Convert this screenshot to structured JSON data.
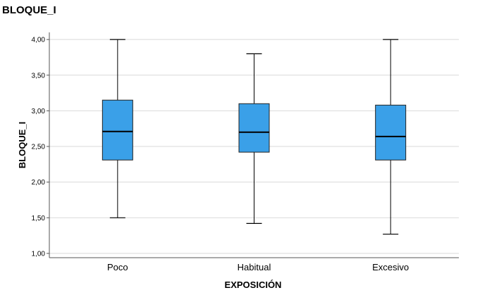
{
  "page": {
    "title": "BLOQUE_I"
  },
  "chart_data": {
    "type": "boxplot",
    "title": "BLOQUE_I",
    "xlabel": "EXPOSICIÓN",
    "ylabel": "BLOQUE_I",
    "ylim": [
      0.94,
      4.1
    ],
    "yticks": [
      1.0,
      1.5,
      2.0,
      2.5,
      3.0,
      3.5,
      4.0
    ],
    "ytick_labels": [
      "1,00",
      "1,50",
      "2,00",
      "2,50",
      "3,00",
      "3,50",
      "4,00"
    ],
    "grid": "horizontal",
    "box_color": "#3aa0e8",
    "categories": [
      "Poco",
      "Habitual",
      "Excesivo"
    ],
    "boxes": [
      {
        "category": "Poco",
        "min": 1.5,
        "q1": 2.31,
        "median": 2.71,
        "q3": 3.15,
        "max": 4.0
      },
      {
        "category": "Habitual",
        "min": 1.42,
        "q1": 2.42,
        "median": 2.7,
        "q3": 3.1,
        "max": 3.8
      },
      {
        "category": "Excesivo",
        "min": 1.27,
        "q1": 2.31,
        "median": 2.64,
        "q3": 3.08,
        "max": 4.0
      }
    ]
  }
}
